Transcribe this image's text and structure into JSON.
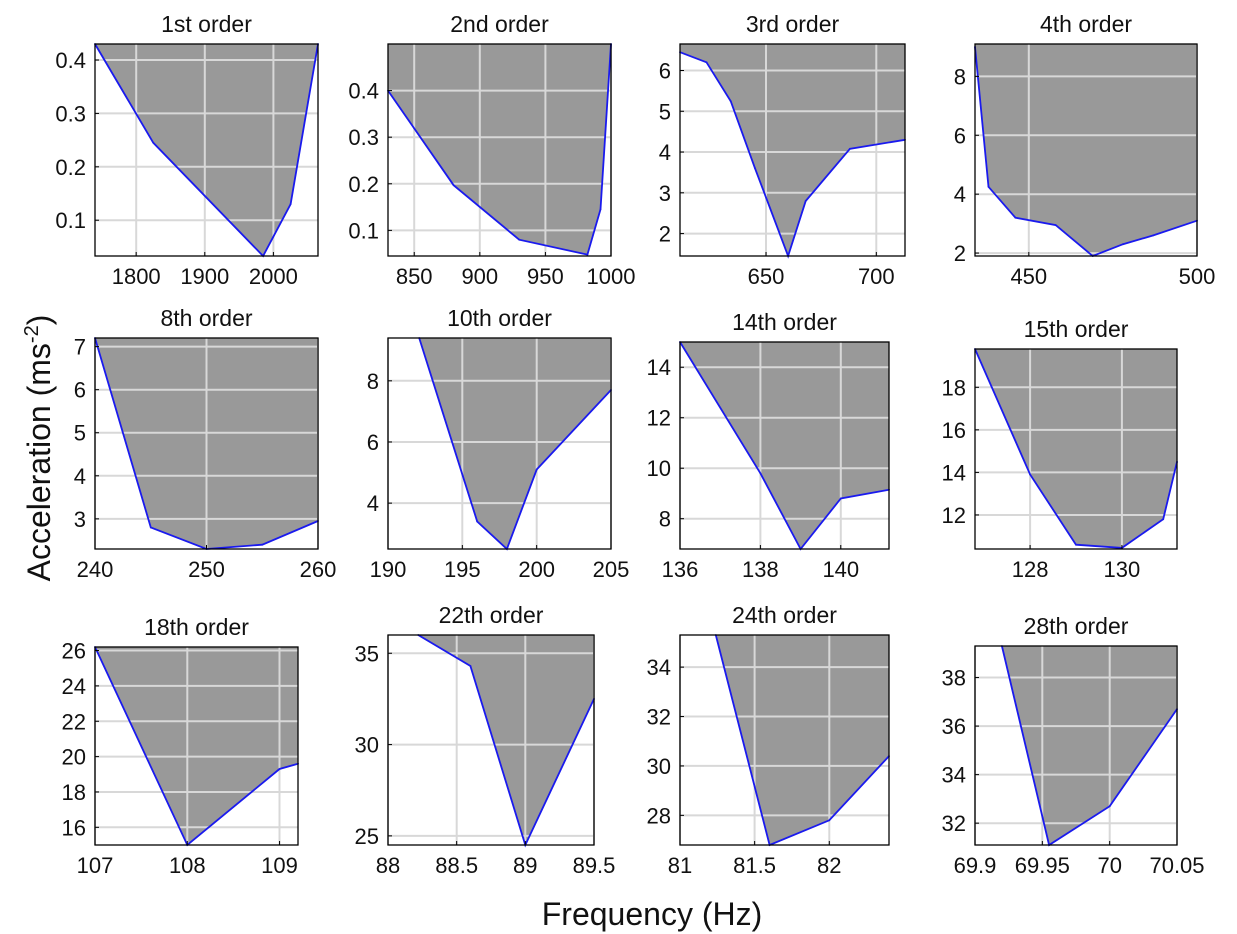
{
  "figure": {
    "xlabel": "Frequency (Hz)",
    "ylabel_main": "Acceleration (ms",
    "ylabel_sup": "-2",
    "ylabel_close": ")"
  },
  "colors": {
    "fill": "#999999",
    "line": "#1a1aee",
    "grid": "#d8d8d8",
    "frame": "#000000"
  },
  "chart_data": [
    {
      "type": "area",
      "title": "1st order",
      "xlim": [
        1740,
        2065
      ],
      "ylim": [
        0.033,
        0.43
      ],
      "xticks": [
        1800,
        1900,
        2000
      ],
      "xticklabels": [
        "1800",
        "1900",
        "2000"
      ],
      "yticks": [
        0.1,
        0.2,
        0.3,
        0.4
      ],
      "yticklabels": [
        "0.1",
        "0.2",
        "0.3",
        "0.4"
      ],
      "x": [
        1740,
        1825,
        1985,
        2025,
        2065
      ],
      "y": [
        0.43,
        0.245,
        0.033,
        0.13,
        0.43
      ]
    },
    {
      "type": "area",
      "title": "2nd order",
      "xlim": [
        830,
        1000
      ],
      "ylim": [
        0.045,
        0.5
      ],
      "xticks": [
        850,
        900,
        950,
        1000
      ],
      "xticklabels": [
        "850",
        "900",
        "950",
        "1000"
      ],
      "yticks": [
        0.1,
        0.2,
        0.3,
        0.4
      ],
      "yticklabels": [
        "0.1",
        "0.2",
        "0.3",
        "0.4"
      ],
      "x": [
        830,
        880,
        930,
        982,
        992,
        1000
      ],
      "y": [
        0.4,
        0.197,
        0.08,
        0.048,
        0.145,
        0.5
      ]
    },
    {
      "type": "area",
      "title": "3rd order",
      "xlim": [
        611,
        713
      ],
      "ylim": [
        1.45,
        6.65
      ],
      "xticks": [
        650,
        700
      ],
      "xticklabels": [
        "650",
        "700"
      ],
      "yticks": [
        2,
        3,
        4,
        5,
        6
      ],
      "yticklabels": [
        "2",
        "3",
        "4",
        "5",
        "6"
      ],
      "x": [
        611,
        623,
        634,
        645,
        660,
        668,
        688,
        713
      ],
      "y": [
        6.45,
        6.2,
        5.25,
        3.6,
        1.45,
        2.8,
        4.08,
        4.3
      ]
    },
    {
      "type": "area",
      "title": "4th order",
      "xlim": [
        434,
        500
      ],
      "ylim": [
        1.9,
        9.1
      ],
      "xticks": [
        450,
        500
      ],
      "xticklabels": [
        "450",
        "500"
      ],
      "yticks": [
        2,
        4,
        6,
        8
      ],
      "yticklabels": [
        "2",
        "4",
        "6",
        "8"
      ],
      "x": [
        434,
        438,
        446,
        458,
        469,
        478,
        487,
        500
      ],
      "y": [
        9.0,
        4.25,
        3.2,
        2.95,
        1.9,
        2.3,
        2.6,
        3.1
      ]
    },
    {
      "type": "area",
      "title": "8th order",
      "xlim": [
        240,
        260
      ],
      "ylim": [
        2.3,
        7.2
      ],
      "xticks": [
        240,
        250,
        260
      ],
      "xticklabels": [
        "240",
        "250",
        "260"
      ],
      "yticks": [
        3,
        4,
        5,
        6,
        7
      ],
      "yticklabels": [
        "3",
        "4",
        "5",
        "6",
        "7"
      ],
      "x": [
        240,
        245,
        250,
        255,
        260
      ],
      "y": [
        7.2,
        2.8,
        2.3,
        2.4,
        2.95
      ]
    },
    {
      "type": "area",
      "title": "10th order",
      "xlim": [
        190,
        205
      ],
      "ylim": [
        2.5,
        9.4
      ],
      "xticks": [
        190,
        195,
        200,
        205
      ],
      "xticklabels": [
        "190",
        "195",
        "200",
        "205"
      ],
      "yticks": [
        4,
        6,
        8
      ],
      "yticklabels": [
        "4",
        "6",
        "8"
      ],
      "x": [
        192.1,
        196,
        198,
        200,
        205
      ],
      "y": [
        9.4,
        3.4,
        2.5,
        5.1,
        7.7
      ]
    },
    {
      "type": "area",
      "title": "14th order",
      "xlim": [
        136,
        141.2
      ],
      "ylim": [
        6.8,
        15
      ],
      "xticks": [
        136,
        138,
        140
      ],
      "xticklabels": [
        "136",
        "138",
        "140"
      ],
      "yticks": [
        8,
        10,
        12,
        14
      ],
      "yticklabels": [
        "8",
        "10",
        "12",
        "14"
      ],
      "x": [
        136,
        138,
        139,
        140,
        141.2
      ],
      "y": [
        15,
        9.8,
        6.8,
        8.8,
        9.15
      ]
    },
    {
      "type": "area",
      "title": "15th order",
      "xlim": [
        126.8,
        131.2
      ],
      "ylim": [
        10.4,
        19.8
      ],
      "xticks": [
        128,
        130
      ],
      "xticklabels": [
        "128",
        "130"
      ],
      "yticks": [
        12,
        14,
        16,
        18
      ],
      "yticklabels": [
        "12",
        "14",
        "16",
        "18"
      ],
      "x": [
        126.8,
        128,
        129,
        130,
        130.9,
        131.2
      ],
      "y": [
        19.8,
        13.9,
        10.6,
        10.45,
        11.8,
        14.5
      ]
    },
    {
      "type": "area",
      "title": "18th order",
      "xlim": [
        107,
        109.2
      ],
      "ylim": [
        15,
        26.2
      ],
      "xticks": [
        107,
        108,
        109
      ],
      "xticklabels": [
        "107",
        "108",
        "109"
      ],
      "yticks": [
        16,
        18,
        20,
        22,
        24,
        26
      ],
      "yticklabels": [
        "16",
        "18",
        "20",
        "22",
        "24",
        "26"
      ],
      "x": [
        107,
        108,
        109,
        109.2
      ],
      "y": [
        26.2,
        15,
        19.3,
        19.6
      ]
    },
    {
      "type": "area",
      "title": "22th order",
      "xlim": [
        88,
        89.5
      ],
      "ylim": [
        24.5,
        36
      ],
      "xticks": [
        88,
        88.5,
        89,
        89.5
      ],
      "xticklabels": [
        "88",
        "88.5",
        "89",
        "89.5"
      ],
      "yticks": [
        25,
        30,
        35
      ],
      "yticklabels": [
        "25",
        "30",
        "35"
      ],
      "x": [
        88.22,
        88.6,
        89,
        89.5
      ],
      "y": [
        36,
        34.3,
        24.5,
        32.5
      ]
    },
    {
      "type": "area",
      "title": "24th order",
      "xlim": [
        81,
        82.4
      ],
      "ylim": [
        26.8,
        35.3
      ],
      "xticks": [
        81,
        81.5,
        82
      ],
      "xticklabels": [
        "81",
        "81.5",
        "82"
      ],
      "yticks": [
        28,
        30,
        32,
        34
      ],
      "yticklabels": [
        "28",
        "30",
        "32",
        "34"
      ],
      "x": [
        81.24,
        81.6,
        82,
        82.4
      ],
      "y": [
        35.3,
        26.8,
        27.8,
        30.4
      ]
    },
    {
      "type": "area",
      "title": "28th order",
      "xlim": [
        69.9,
        70.05
      ],
      "ylim": [
        31.1,
        39.3
      ],
      "xticks": [
        69.9,
        69.95,
        70,
        70.05
      ],
      "xticklabels": [
        "69.9",
        "69.95",
        "70",
        "70.05"
      ],
      "yticks": [
        32,
        34,
        36,
        38
      ],
      "yticklabels": [
        "32",
        "34",
        "36",
        "38"
      ],
      "x": [
        69.92,
        69.955,
        70,
        70.05
      ],
      "y": [
        39.3,
        31.1,
        32.7,
        36.7
      ]
    }
  ]
}
